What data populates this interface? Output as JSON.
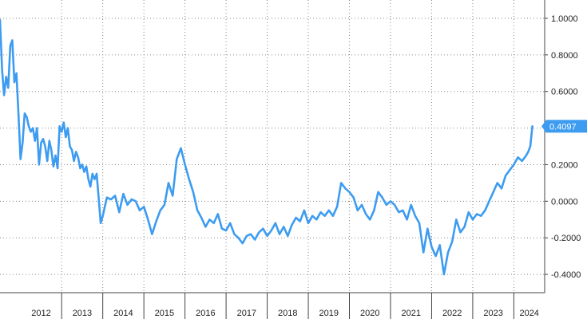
{
  "chart_data": {
    "type": "line",
    "title": "",
    "xlabel": "",
    "ylabel": "",
    "ylim": [
      -0.5,
      1.1
    ],
    "xlim": [
      2011.5,
      2024.75
    ],
    "grid": true,
    "legend": "none",
    "y_ticks": [
      {
        "value": 1.0,
        "label": "1.0000"
      },
      {
        "value": 0.8,
        "label": "0.8000"
      },
      {
        "value": 0.6,
        "label": "0.6000"
      },
      {
        "value": 0.4,
        "label": "0.4000"
      },
      {
        "value": 0.2,
        "label": "0.2000"
      },
      {
        "value": 0.0,
        "label": "0.0000"
      },
      {
        "value": -0.2,
        "label": "-0.2000"
      },
      {
        "value": -0.4,
        "label": "-0.4000"
      }
    ],
    "x_ticks": [
      "2012",
      "2013",
      "2014",
      "2015",
      "2016",
      "2017",
      "2018",
      "2019",
      "2020",
      "2021",
      "2022",
      "2023",
      "2024"
    ],
    "last_value": 0.4097,
    "last_value_label": "0.4097",
    "series": [
      {
        "color": "#3d9cf0",
        "x": [
          2011.5,
          2011.55,
          2011.6,
          2011.65,
          2011.7,
          2011.75,
          2011.8,
          2011.85,
          2011.9,
          2011.95,
          2012.0,
          2012.05,
          2012.1,
          2012.15,
          2012.2,
          2012.25,
          2012.3,
          2012.35,
          2012.4,
          2012.45,
          2012.5,
          2012.55,
          2012.6,
          2012.65,
          2012.7,
          2012.75,
          2012.8,
          2012.85,
          2012.9,
          2012.95,
          2013.0,
          2013.05,
          2013.1,
          2013.15,
          2013.2,
          2013.25,
          2013.3,
          2013.35,
          2013.4,
          2013.45,
          2013.5,
          2013.55,
          2013.6,
          2013.65,
          2013.7,
          2013.75,
          2013.8,
          2013.85,
          2013.9,
          2013.95,
          2014.0,
          2014.1,
          2014.2,
          2014.3,
          2014.4,
          2014.5,
          2014.6,
          2014.7,
          2014.8,
          2014.9,
          2015.0,
          2015.1,
          2015.2,
          2015.3,
          2015.4,
          2015.5,
          2015.6,
          2015.7,
          2015.8,
          2015.9,
          2016.0,
          2016.1,
          2016.2,
          2016.3,
          2016.4,
          2016.5,
          2016.6,
          2016.7,
          2016.8,
          2016.9,
          2017.0,
          2017.1,
          2017.2,
          2017.3,
          2017.4,
          2017.5,
          2017.6,
          2017.7,
          2017.8,
          2017.9,
          2018.0,
          2018.1,
          2018.2,
          2018.3,
          2018.4,
          2018.5,
          2018.6,
          2018.7,
          2018.8,
          2018.9,
          2019.0,
          2019.1,
          2019.2,
          2019.3,
          2019.4,
          2019.5,
          2019.6,
          2019.7,
          2019.8,
          2019.9,
          2020.0,
          2020.1,
          2020.2,
          2020.3,
          2020.4,
          2020.5,
          2020.6,
          2020.7,
          2020.8,
          2020.9,
          2021.0,
          2021.1,
          2021.2,
          2021.3,
          2021.4,
          2021.5,
          2021.6,
          2021.7,
          2021.8,
          2021.9,
          2022.0,
          2022.1,
          2022.2,
          2022.3,
          2022.4,
          2022.5,
          2022.6,
          2022.7,
          2022.8,
          2022.9,
          2023.0,
          2023.1,
          2023.2,
          2023.3,
          2023.4,
          2023.5,
          2023.6,
          2023.7,
          2023.8,
          2023.9,
          2024.0,
          2024.1,
          2024.2,
          2024.3,
          2024.35,
          2024.4,
          2024.45
        ],
        "y": [
          0.99,
          0.72,
          0.58,
          0.68,
          0.62,
          0.85,
          0.88,
          0.65,
          0.7,
          0.47,
          0.23,
          0.32,
          0.48,
          0.46,
          0.41,
          0.38,
          0.4,
          0.33,
          0.4,
          0.2,
          0.32,
          0.34,
          0.3,
          0.22,
          0.33,
          0.28,
          0.19,
          0.25,
          0.18,
          0.41,
          0.38,
          0.43,
          0.35,
          0.4,
          0.3,
          0.28,
          0.22,
          0.27,
          0.24,
          0.18,
          0.2,
          0.16,
          0.19,
          0.12,
          0.08,
          0.15,
          0.12,
          0.15,
          0.02,
          -0.12,
          -0.08,
          0.02,
          0.01,
          0.03,
          -0.06,
          0.04,
          -0.02,
          0.01,
          0.0,
          -0.05,
          -0.03,
          -0.1,
          -0.18,
          -0.11,
          -0.05,
          -0.02,
          0.1,
          0.03,
          0.23,
          0.29,
          0.2,
          0.12,
          0.05,
          -0.05,
          -0.09,
          -0.14,
          -0.1,
          -0.12,
          -0.07,
          -0.15,
          -0.16,
          -0.12,
          -0.18,
          -0.2,
          -0.23,
          -0.19,
          -0.18,
          -0.21,
          -0.17,
          -0.15,
          -0.19,
          -0.16,
          -0.12,
          -0.18,
          -0.14,
          -0.19,
          -0.13,
          -0.09,
          -0.11,
          -0.05,
          -0.12,
          -0.08,
          -0.1,
          -0.06,
          -0.08,
          -0.05,
          -0.08,
          -0.03,
          0.1,
          0.07,
          0.05,
          0.02,
          -0.05,
          -0.02,
          -0.07,
          -0.1,
          -0.05,
          0.05,
          0.02,
          -0.02,
          0.0,
          -0.02,
          -0.06,
          -0.05,
          -0.1,
          -0.02,
          -0.08,
          -0.12,
          -0.28,
          -0.15,
          -0.25,
          -0.3,
          -0.24,
          -0.4,
          -0.28,
          -0.22,
          -0.1,
          -0.17,
          -0.14,
          -0.06,
          -0.1,
          -0.07,
          -0.08,
          -0.05,
          0.0,
          0.05,
          0.1,
          0.07,
          0.14,
          0.17,
          0.2,
          0.24,
          0.22,
          0.25,
          0.27,
          0.3,
          0.41
        ]
      }
    ]
  }
}
